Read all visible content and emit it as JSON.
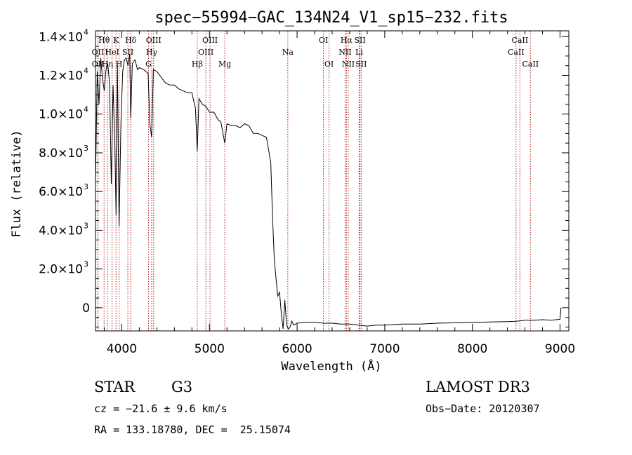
{
  "chart_data": {
    "type": "line",
    "title": "spec−55994−GAC_134N24_V1_sp15−232.fits",
    "xlabel": "Wavelength (Å)",
    "ylabel": "Flux (relative)",
    "xlim": [
      3700,
      9100
    ],
    "ylim": [
      -1200,
      14300
    ],
    "xticks": [
      4000,
      5000,
      6000,
      7000,
      8000,
      9000
    ],
    "xtick_labels": [
      "4000",
      "5000",
      "6000",
      "7000",
      "8000",
      "9000"
    ],
    "yticks": [
      {
        "value": 0,
        "mantissa": "0",
        "exp": ""
      },
      {
        "value": 2000,
        "mantissa": "2.0×10",
        "exp": "3"
      },
      {
        "value": 4000,
        "mantissa": "4.0×10",
        "exp": "3"
      },
      {
        "value": 6000,
        "mantissa": "6.0×10",
        "exp": "3"
      },
      {
        "value": 8000,
        "mantissa": "8.0×10",
        "exp": "3"
      },
      {
        "value": 10000,
        "mantissa": "1.0×10",
        "exp": "4"
      },
      {
        "value": 12000,
        "mantissa": "1.2×10",
        "exp": "4"
      },
      {
        "value": 14000,
        "mantissa": "1.4×10",
        "exp": "4"
      }
    ],
    "grid": false,
    "line_color": "#000000",
    "line_marker_color": "#b22222",
    "spectral_lines": [
      {
        "name": "Hθ",
        "wave": 3798,
        "row": 0
      },
      {
        "name": "OII",
        "wave": 3727,
        "row": 1
      },
      {
        "name": "OII",
        "wave": 3729,
        "row": 2
      },
      {
        "name": "Hη",
        "wave": 3835,
        "row": 2
      },
      {
        "name": "HeI",
        "wave": 3889,
        "row": 1
      },
      {
        "name": "K",
        "wave": 3934,
        "row": 0
      },
      {
        "name": "SII",
        "wave": 4069,
        "row": 1
      },
      {
        "name": "H",
        "wave": 3969,
        "row": 2
      },
      {
        "name": "Hδ",
        "wave": 4102,
        "row": 0
      },
      {
        "name": "OIII",
        "wave": 4363,
        "row": 0
      },
      {
        "name": "Hγ",
        "wave": 4341,
        "row": 1
      },
      {
        "name": "G",
        "wave": 4305,
        "row": 2
      },
      {
        "name": "OIII",
        "wave": 5007,
        "row": 0
      },
      {
        "name": "OIII",
        "wave": 4959,
        "row": 1
      },
      {
        "name": "Hβ",
        "wave": 4861,
        "row": 2
      },
      {
        "name": "Mg",
        "wave": 5175,
        "row": 2
      },
      {
        "name": "Na",
        "wave": 5894,
        "row": 1
      },
      {
        "name": "OI",
        "wave": 6300,
        "row": 0
      },
      {
        "name": "OI",
        "wave": 6364,
        "row": 2
      },
      {
        "name": "Hα",
        "wave": 6563,
        "row": 0
      },
      {
        "name": "NII",
        "wave": 6548,
        "row": 1
      },
      {
        "name": "NII",
        "wave": 6584,
        "row": 2
      },
      {
        "name": "SII",
        "wave": 6717,
        "row": 0
      },
      {
        "name": "Li",
        "wave": 6708,
        "row": 1
      },
      {
        "name": "SII",
        "wave": 6731,
        "row": 2
      },
      {
        "name": "CaII",
        "wave": 8542,
        "row": 0
      },
      {
        "name": "CaII",
        "wave": 8498,
        "row": 1
      },
      {
        "name": "CaII",
        "wave": 8662,
        "row": 2
      }
    ],
    "series": [
      {
        "name": "flux",
        "x": [
          3700,
          3720,
          3740,
          3760,
          3780,
          3800,
          3820,
          3840,
          3860,
          3880,
          3900,
          3920,
          3935,
          3950,
          3969,
          3990,
          4010,
          4030,
          4050,
          4070,
          4090,
          4102,
          4120,
          4150,
          4180,
          4200,
          4250,
          4300,
          4320,
          4340,
          4360,
          4400,
          4450,
          4500,
          4550,
          4600,
          4650,
          4700,
          4750,
          4800,
          4840,
          4861,
          4880,
          4920,
          4960,
          5000,
          5050,
          5100,
          5130,
          5175,
          5200,
          5250,
          5300,
          5350,
          5400,
          5450,
          5500,
          5550,
          5600,
          5650,
          5700,
          5720,
          5740,
          5760,
          5780,
          5800,
          5820,
          5840,
          5860,
          5880,
          5900,
          5920,
          5940,
          5960,
          6000,
          6100,
          6200,
          6300,
          6400,
          6500,
          6600,
          6700,
          6800,
          6900,
          7000,
          7200,
          7400,
          7600,
          7800,
          8000,
          8200,
          8400,
          8500,
          8600,
          8700,
          8800,
          8900,
          9000,
          9010
        ],
        "y": [
          6500,
          12200,
          10500,
          12900,
          11800,
          11200,
          12300,
          12600,
          11600,
          6400,
          11500,
          8500,
          4800,
          12600,
          4200,
          9500,
          12200,
          12800,
          12900,
          12500,
          13100,
          9800,
          12600,
          12800,
          12300,
          12400,
          12300,
          12100,
          9500,
          8800,
          12300,
          12200,
          11900,
          11600,
          11500,
          11500,
          11300,
          11200,
          11100,
          11100,
          10300,
          8100,
          10800,
          10500,
          10400,
          10100,
          10100,
          9700,
          9600,
          8500,
          9500,
          9400,
          9400,
          9300,
          9500,
          9400,
          9000,
          9000,
          8900,
          8800,
          7500,
          4700,
          2500,
          1500,
          600,
          800,
          -300,
          -1100,
          400,
          -900,
          -1100,
          -1000,
          -700,
          -900,
          -800,
          -750,
          -750,
          -800,
          -800,
          -850,
          -850,
          -900,
          -950,
          -900,
          -900,
          -850,
          -850,
          -800,
          -780,
          -760,
          -740,
          -720,
          -700,
          -650,
          -650,
          -620,
          -650,
          -600,
          0
        ]
      }
    ]
  },
  "footer": {
    "object_class": "STAR",
    "subclass": "G3",
    "survey": "LAMOST DR3",
    "cz": "cz = −21.6 ± 9.6 km/s",
    "obs_date": "Obs−Date: 20120307",
    "coords": "RA = 133.18780, DEC =  25.15074"
  }
}
